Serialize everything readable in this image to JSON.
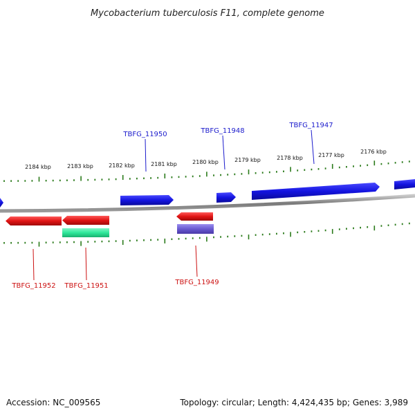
{
  "title": "Mycobacterium tuberculosis F11, complete genome",
  "footer": {
    "accession": "Accession: NC_009565",
    "summary": "Topology: circular; Length: 4,424,435 bp; Genes: 3,989"
  },
  "colors": {
    "forward_gene": "#1414e0",
    "reverse_gene": "#e01414",
    "rna_like": "#2ee89a",
    "purple_feature": "#6a5ad0",
    "backbone": "#8a8a8a",
    "ticks": "#2a7a1a"
  },
  "ticks": [
    {
      "label": "2184 kbp"
    },
    {
      "label": "2183 kbp"
    },
    {
      "label": "2182 kbp"
    },
    {
      "label": "2181 kbp"
    },
    {
      "label": "2180 kbp"
    },
    {
      "label": "2179 kbp"
    },
    {
      "label": "2178 kbp"
    },
    {
      "label": "2177 kbp"
    },
    {
      "label": "2176 kbp"
    }
  ],
  "top_gene_labels": [
    {
      "name": "TBFG_11950"
    },
    {
      "name": "TBFG_11948"
    },
    {
      "name": "TBFG_11947"
    }
  ],
  "bottom_gene_labels": [
    {
      "name": "TBFG_11952"
    },
    {
      "name": "TBFG_11951"
    },
    {
      "name": "TBFG_11949"
    }
  ]
}
